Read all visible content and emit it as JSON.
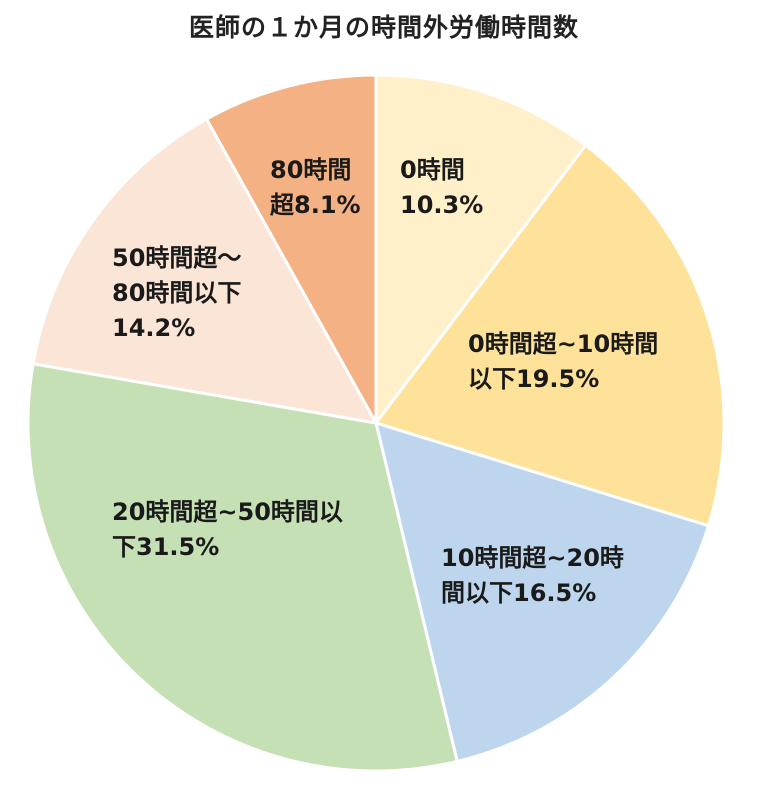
{
  "chart_data": {
    "type": "pie",
    "title": "医師の１か月の時間外労働時間数",
    "slices": [
      {
        "lines": [
          "0時間",
          "10.3%"
        ],
        "value": 10.3,
        "color": "#FFF0C9"
      },
      {
        "lines": [
          "0時間超~10時間",
          "以下19.5%"
        ],
        "value": 19.5,
        "color": "#FFE29A"
      },
      {
        "lines": [
          "10時間超~20時",
          "間以下16.5%"
        ],
        "value": 16.5,
        "color": "#BDD6EE"
      },
      {
        "lines": [
          "20時間超~50時間以",
          "下31.5%"
        ],
        "value": 31.5,
        "color": "#C5E0B4"
      },
      {
        "lines": [
          "50時間超～",
          "80時間以下",
          "14.2%"
        ],
        "value": 14.2,
        "color": "#FBE5D6"
      },
      {
        "lines": [
          "80時間",
          "超8.1%"
        ],
        "value": 8.1,
        "color": "#F4B183"
      }
    ],
    "start": "top",
    "direction": "clockwise"
  }
}
